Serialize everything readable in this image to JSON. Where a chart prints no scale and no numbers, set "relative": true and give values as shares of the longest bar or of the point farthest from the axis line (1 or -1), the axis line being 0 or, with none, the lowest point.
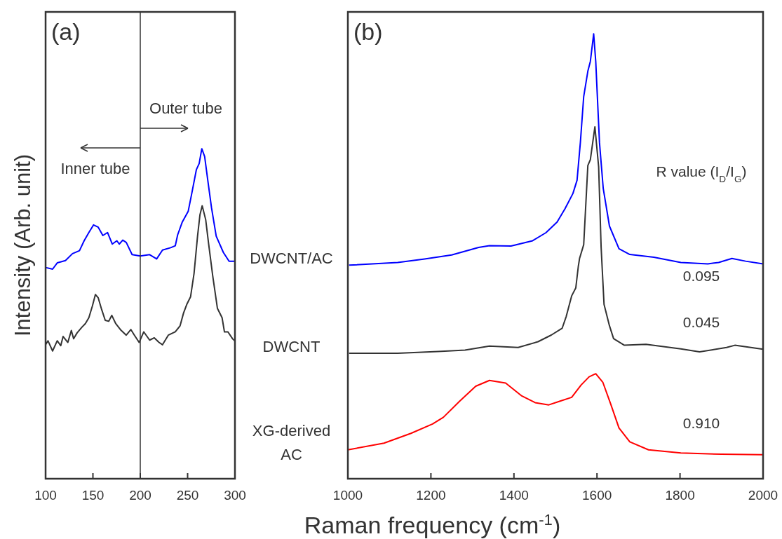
{
  "chart_data": [
    {
      "type": "line",
      "title": "(a)",
      "ylabel": "Intensity (Arb. unit)",
      "relative": true,
      "xlim": [
        100,
        300
      ],
      "xticks": [
        100,
        150,
        200,
        250,
        300
      ],
      "ref_lines": [
        {
          "axis": "x",
          "value": 200,
          "color": "#333333"
        }
      ],
      "annotations": [
        "Outer tube",
        "Inner tube"
      ],
      "series": [
        {
          "color": "#0000ff",
          "x": [
            100,
            107.4,
            112.3,
            121,
            128.4,
            135.8,
            140.7,
            145.7,
            150.6,
            155.6,
            160.5,
            165.4,
            170.4,
            175.3,
            177.8,
            181.5,
            185.2,
            191.4,
            200,
            209.9,
            217.3,
            223.5,
            232.1,
            237,
            239.5,
            244.4,
            250.6,
            254.3,
            259.3,
            262.2,
            265,
            268,
            271.6,
            275.3,
            280.2,
            287.7,
            293.8,
            300
          ],
          "values": [
            0.64,
            0.635,
            0.654,
            0.661,
            0.682,
            0.691,
            0.721,
            0.746,
            0.769,
            0.762,
            0.737,
            0.746,
            0.711,
            0.721,
            0.711,
            0.723,
            0.716,
            0.679,
            0.675,
            0.679,
            0.666,
            0.693,
            0.7,
            0.706,
            0.739,
            0.778,
            0.81,
            0.863,
            0.937,
            0.955,
            1,
            0.976,
            0.898,
            0.82,
            0.735,
            0.686,
            0.659,
            0.659
          ]
        },
        {
          "color": "#333333",
          "x": [
            100,
            102.5,
            107.4,
            112.3,
            116,
            118.5,
            123.5,
            127.2,
            129.6,
            133.3,
            138.3,
            142,
            145.7,
            149.4,
            152.6,
            155.6,
            159.3,
            163,
            166.7,
            169.9,
            174.1,
            179,
            185.2,
            190.1,
            193.8,
            198.8,
            203.7,
            209.9,
            214.8,
            219.8,
            223.5,
            229.6,
            237,
            242,
            245.7,
            249.4,
            253.1,
            256.8,
            260.5,
            263,
            265.4,
            269.1,
            272.1,
            276.5,
            281.5,
            286.4,
            288.9,
            292.6,
            297.5,
            300
          ],
          "values": [
            0.406,
            0.418,
            0.387,
            0.418,
            0.403,
            0.431,
            0.413,
            0.449,
            0.424,
            0.442,
            0.459,
            0.47,
            0.488,
            0.523,
            0.558,
            0.548,
            0.512,
            0.48,
            0.477,
            0.495,
            0.47,
            0.452,
            0.435,
            0.452,
            0.435,
            0.413,
            0.445,
            0.42,
            0.427,
            0.413,
            0.406,
            0.435,
            0.445,
            0.463,
            0.502,
            0.53,
            0.551,
            0.622,
            0.735,
            0.799,
            0.827,
            0.785,
            0.714,
            0.615,
            0.516,
            0.488,
            0.445,
            0.445,
            0.424,
            0.417
          ]
        }
      ]
    },
    {
      "type": "line",
      "title": "(b)",
      "xlabel": "Raman frequency (cm$^{-1}$)",
      "relative": true,
      "xlim": [
        1000,
        2000
      ],
      "xticks": [
        1000,
        1200,
        1400,
        1600,
        1800,
        2000
      ],
      "annotations": [
        "R value (I$_{D}$/I$_{G}$)",
        "0.095",
        "0.045",
        "0.910"
      ],
      "series": [
        {
          "name": "DWCNT/AC",
          "color": "#0000ff",
          "x": [
            1003,
            1120,
            1185,
            1250,
            1315,
            1341,
            1393,
            1445,
            1477,
            1504,
            1523,
            1542,
            1552,
            1560,
            1568,
            1578,
            1584,
            1592,
            1597,
            1606,
            1615,
            1630,
            1653,
            1679,
            1737,
            1802,
            1867,
            1893,
            1925,
            1958,
            2000
          ],
          "values": [
            0.48,
            0.486,
            0.494,
            0.503,
            0.52,
            0.524,
            0.523,
            0.535,
            0.553,
            0.577,
            0.607,
            0.641,
            0.671,
            0.756,
            0.859,
            0.916,
            0.938,
            1,
            0.938,
            0.756,
            0.653,
            0.568,
            0.517,
            0.504,
            0.498,
            0.486,
            0.483,
            0.486,
            0.495,
            0.489,
            0.483
          ]
        },
        {
          "name": "DWCNT",
          "color": "#333333",
          "x": [
            1003,
            1120,
            1217,
            1282,
            1341,
            1410,
            1458,
            1490,
            1516,
            1526,
            1539,
            1549,
            1555,
            1558,
            1568,
            1578,
            1584,
            1595,
            1604,
            1610,
            1612,
            1617,
            1630,
            1640,
            1666,
            1718,
            1802,
            1847,
            1912,
            1932,
            2000
          ],
          "values": [
            0.282,
            0.282,
            0.286,
            0.289,
            0.298,
            0.295,
            0.308,
            0.323,
            0.338,
            0.365,
            0.411,
            0.429,
            0.477,
            0.495,
            0.526,
            0.704,
            0.717,
            0.791,
            0.701,
            0.52,
            0.483,
            0.392,
            0.344,
            0.315,
            0.3,
            0.302,
            0.292,
            0.285,
            0.295,
            0.3,
            0.291
          ]
        },
        {
          "name": "XG-derived AC",
          "color": "#ff0000",
          "x": [
            1000,
            1087,
            1152,
            1204,
            1230,
            1269,
            1308,
            1341,
            1380,
            1419,
            1451,
            1484,
            1510,
            1539,
            1562,
            1581,
            1597,
            1614,
            1633,
            1653,
            1679,
            1724,
            1802,
            1900,
            2000
          ],
          "values": [
            0.065,
            0.08,
            0.102,
            0.123,
            0.138,
            0.174,
            0.208,
            0.221,
            0.215,
            0.186,
            0.171,
            0.166,
            0.174,
            0.183,
            0.211,
            0.229,
            0.236,
            0.217,
            0.168,
            0.114,
            0.083,
            0.065,
            0.058,
            0.055,
            0.054
          ]
        }
      ]
    }
  ]
}
